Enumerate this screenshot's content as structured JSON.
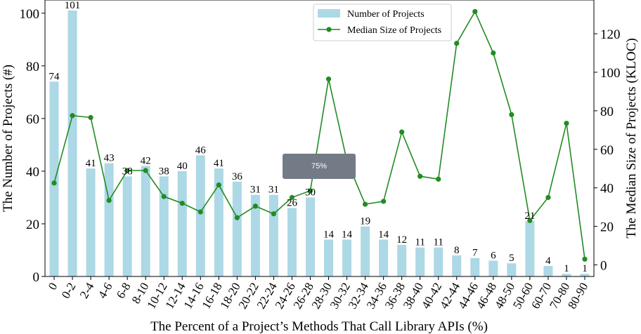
{
  "chart_data": {
    "type": "bar",
    "categories": [
      "0",
      "0-2",
      "2-4",
      "4-6",
      "6-8",
      "8-10",
      "10-12",
      "12-14",
      "14-16",
      "16-18",
      "18-20",
      "20-22",
      "22-24",
      "24-26",
      "26-28",
      "28-30",
      "30-32",
      "32-34",
      "34-36",
      "36-38",
      "38-40",
      "40-42",
      "42-44",
      "44-46",
      "46-48",
      "48-50",
      "50-60",
      "60-70",
      "70-80",
      "80-90"
    ],
    "series": [
      {
        "name": "Number of Projects",
        "type": "bar",
        "axis": "left",
        "color": "#add8e6",
        "values": [
          74,
          101,
          41,
          43,
          38,
          42,
          38,
          40,
          46,
          41,
          36,
          31,
          31,
          26,
          30,
          14,
          14,
          19,
          14,
          12,
          11,
          11,
          8,
          7,
          6,
          5,
          21,
          4,
          1,
          1
        ]
      },
      {
        "name": "Median Size of Projects",
        "type": "line",
        "axis": "right",
        "color": "#228b22",
        "values": [
          42.5,
          77.5,
          76.5,
          33.5,
          49,
          49,
          35.5,
          32,
          27.5,
          41.5,
          24.5,
          30.5,
          26.5,
          35,
          38.5,
          96.5,
          54,
          31.5,
          33,
          69,
          46,
          44.5,
          115,
          131.5,
          110,
          78,
          23,
          35,
          73.5,
          3
        ]
      }
    ],
    "xlabel": "The Percent of a Project’s Methods That Call Library APIs (%)",
    "ylabel": "The Number of Projects (#)",
    "y2label": "The Median Size of Projects (KLOC)",
    "ylim": [
      0,
      105
    ],
    "y2lim": [
      -6,
      137.5
    ],
    "yticks": [
      0,
      20,
      40,
      60,
      80,
      100
    ],
    "y2ticks": [
      0,
      20,
      40,
      60,
      80,
      100,
      120
    ],
    "legend": "top-center",
    "grid": false
  },
  "tooltip": {
    "text": "75%"
  }
}
